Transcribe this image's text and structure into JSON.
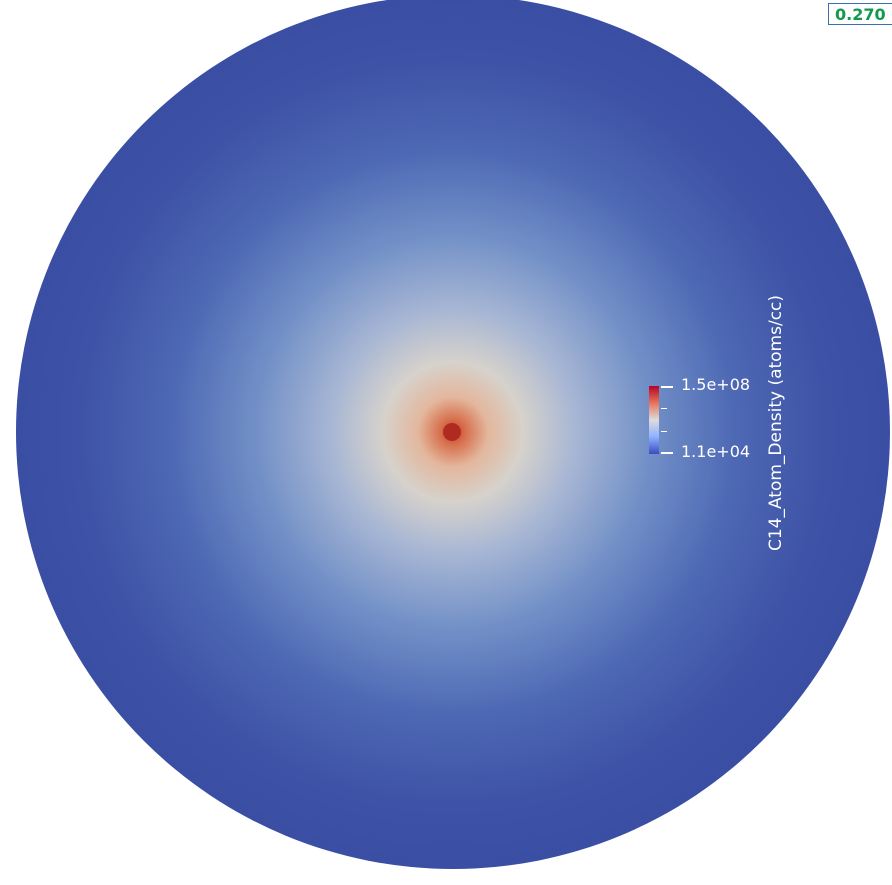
{
  "time_annotation": {
    "text": "0.270",
    "color": "#0f9a4e"
  },
  "scalar_bar": {
    "title": "C14_Atom_Density (atoms/cc)",
    "max_label": "1.5e+08",
    "min_label": "1.1e+04",
    "colormap": [
      "#3b4cc0",
      "#dddddd",
      "#b40426"
    ]
  },
  "render_colors": {
    "background": "#ffffff",
    "outer": "#3a4ea4",
    "mid": "#6a8ac8",
    "inner": "#d9c7b4",
    "hotspot": "#b02a20"
  }
}
